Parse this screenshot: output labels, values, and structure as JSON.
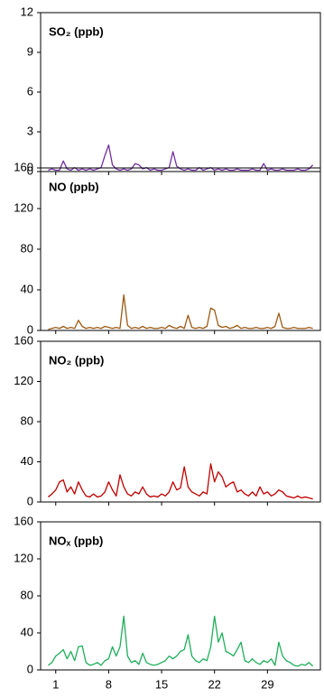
{
  "chart_data": [
    {
      "type": "line",
      "title": "SO₂ (ppb)",
      "color": "#7030a0",
      "ylim": [
        0,
        12
      ],
      "yticks": [
        0,
        3,
        6,
        9,
        12
      ],
      "x": [
        0,
        0.5,
        1,
        1.5,
        2,
        2.5,
        3,
        3.5,
        4,
        4.5,
        5,
        5.5,
        6,
        6.5,
        7,
        7.5,
        8,
        8.5,
        9,
        9.5,
        10,
        10.5,
        11,
        11.5,
        12,
        12.5,
        13,
        13.5,
        14,
        14.5,
        15,
        15.5,
        16,
        16.5,
        17,
        17.5,
        18,
        18.5,
        19,
        19.5,
        20,
        20.5,
        21,
        21.5,
        22,
        22.5,
        23,
        23.5,
        24,
        24.5,
        25,
        25.5,
        26,
        26.5,
        27,
        27.5,
        28,
        28.5,
        29,
        29.5,
        30,
        30.5,
        31,
        31.5,
        32,
        32.5,
        33,
        33.5,
        34,
        34.5,
        35
      ],
      "values": [
        0.1,
        0.2,
        0.1,
        0.1,
        0.8,
        0.2,
        0.1,
        0.3,
        0.1,
        0.2,
        0.1,
        0.2,
        0.1,
        0.2,
        0.3,
        1.2,
        2.0,
        0.5,
        0.2,
        0.1,
        0.2,
        0.1,
        0.2,
        0.6,
        0.5,
        0.2,
        0.3,
        0.1,
        0.2,
        0.1,
        0.1,
        0.2,
        0.3,
        1.5,
        0.4,
        0.2,
        0.1,
        0.2,
        0.1,
        0.1,
        0.3,
        0.1,
        0.2,
        0.3,
        0.1,
        0.2,
        0.1,
        0.2,
        0.1,
        0.1,
        0.2,
        0.1,
        0.1,
        0.1,
        0.2,
        0.1,
        0.1,
        0.6,
        0.1,
        0.2,
        0.1,
        0.1,
        0.2,
        0.1,
        0.1,
        0.1,
        0.2,
        0.1,
        0.1,
        0.2,
        0.5
      ]
    },
    {
      "type": "line",
      "title": "NO (ppb)",
      "color": "#9c5a14",
      "ylim": [
        0,
        160
      ],
      "yticks": [
        0,
        40,
        80,
        120,
        160
      ],
      "x": [
        0,
        0.5,
        1,
        1.5,
        2,
        2.5,
        3,
        3.5,
        4,
        4.5,
        5,
        5.5,
        6,
        6.5,
        7,
        7.5,
        8,
        8.5,
        9,
        9.5,
        10,
        10.5,
        11,
        11.5,
        12,
        12.5,
        13,
        13.5,
        14,
        14.5,
        15,
        15.5,
        16,
        16.5,
        17,
        17.5,
        18,
        18.5,
        19,
        19.5,
        20,
        20.5,
        21,
        21.5,
        22,
        22.5,
        23,
        23.5,
        24,
        24.5,
        25,
        25.5,
        26,
        26.5,
        27,
        27.5,
        28,
        28.5,
        29,
        29.5,
        30,
        30.5,
        31,
        31.5,
        32,
        32.5,
        33,
        33.5,
        34,
        34.5,
        35
      ],
      "values": [
        1,
        2,
        3,
        2,
        4,
        2,
        3,
        2,
        10,
        4,
        2,
        3,
        2,
        3,
        2,
        4,
        3,
        2,
        3,
        2,
        35,
        5,
        2,
        3,
        2,
        4,
        2,
        3,
        2,
        2,
        3,
        2,
        5,
        3,
        2,
        4,
        2,
        15,
        3,
        2,
        3,
        2,
        4,
        22,
        20,
        5,
        3,
        4,
        2,
        3,
        5,
        2,
        3,
        2,
        2,
        3,
        2,
        2,
        3,
        2,
        4,
        17,
        3,
        2,
        2,
        3,
        2,
        2,
        2,
        3,
        2
      ]
    },
    {
      "type": "line",
      "title": "NO₂ (ppb)",
      "color": "#c00000",
      "ylim": [
        0,
        160
      ],
      "yticks": [
        0,
        40,
        80,
        120,
        160
      ],
      "x": [
        0,
        0.5,
        1,
        1.5,
        2,
        2.5,
        3,
        3.5,
        4,
        4.5,
        5,
        5.5,
        6,
        6.5,
        7,
        7.5,
        8,
        8.5,
        9,
        9.5,
        10,
        10.5,
        11,
        11.5,
        12,
        12.5,
        13,
        13.5,
        14,
        14.5,
        15,
        15.5,
        16,
        16.5,
        17,
        17.5,
        18,
        18.5,
        19,
        19.5,
        20,
        20.5,
        21,
        21.5,
        22,
        22.5,
        23,
        23.5,
        24,
        24.5,
        25,
        25.5,
        26,
        26.5,
        27,
        27.5,
        28,
        28.5,
        29,
        29.5,
        30,
        30.5,
        31,
        31.5,
        32,
        32.5,
        33,
        33.5,
        34,
        34.5,
        35
      ],
      "values": [
        5,
        8,
        12,
        20,
        22,
        10,
        15,
        8,
        20,
        12,
        6,
        5,
        8,
        5,
        6,
        10,
        20,
        12,
        6,
        27,
        15,
        8,
        6,
        10,
        8,
        15,
        8,
        5,
        6,
        5,
        8,
        6,
        10,
        20,
        12,
        14,
        35,
        15,
        10,
        8,
        6,
        10,
        8,
        38,
        20,
        30,
        25,
        15,
        18,
        20,
        10,
        12,
        8,
        6,
        10,
        6,
        15,
        8,
        10,
        6,
        8,
        12,
        10,
        6,
        5,
        4,
        6,
        4,
        5,
        4,
        3
      ]
    },
    {
      "type": "line",
      "title": "NOₓ (ppb)",
      "color": "#1fae5b",
      "ylim": [
        0,
        160
      ],
      "yticks": [
        0,
        40,
        80,
        120,
        160
      ],
      "xlim": [
        -1,
        36
      ],
      "xticks": [
        1,
        8,
        15,
        22,
        29
      ],
      "x": [
        0,
        0.5,
        1,
        1.5,
        2,
        2.5,
        3,
        3.5,
        4,
        4.5,
        5,
        5.5,
        6,
        6.5,
        7,
        7.5,
        8,
        8.5,
        9,
        9.5,
        10,
        10.5,
        11,
        11.5,
        12,
        12.5,
        13,
        13.5,
        14,
        14.5,
        15,
        15.5,
        16,
        16.5,
        17,
        17.5,
        18,
        18.5,
        19,
        19.5,
        20,
        20.5,
        21,
        21.5,
        22,
        22.5,
        23,
        23.5,
        24,
        24.5,
        25,
        25.5,
        26,
        26.5,
        27,
        27.5,
        28,
        28.5,
        29,
        29.5,
        30,
        30.5,
        31,
        31.5,
        32,
        32.5,
        33,
        33.5,
        34,
        34.5,
        35
      ],
      "values": [
        5,
        8,
        15,
        18,
        22,
        12,
        20,
        10,
        25,
        26,
        8,
        5,
        6,
        8,
        5,
        10,
        12,
        25,
        15,
        25,
        58,
        15,
        8,
        10,
        6,
        18,
        8,
        6,
        5,
        6,
        8,
        10,
        15,
        12,
        15,
        20,
        22,
        38,
        15,
        10,
        8,
        12,
        10,
        25,
        58,
        30,
        40,
        20,
        18,
        15,
        22,
        30,
        10,
        8,
        12,
        8,
        6,
        10,
        8,
        12,
        5,
        30,
        15,
        10,
        8,
        5,
        4,
        6,
        5,
        8,
        4
      ]
    }
  ]
}
